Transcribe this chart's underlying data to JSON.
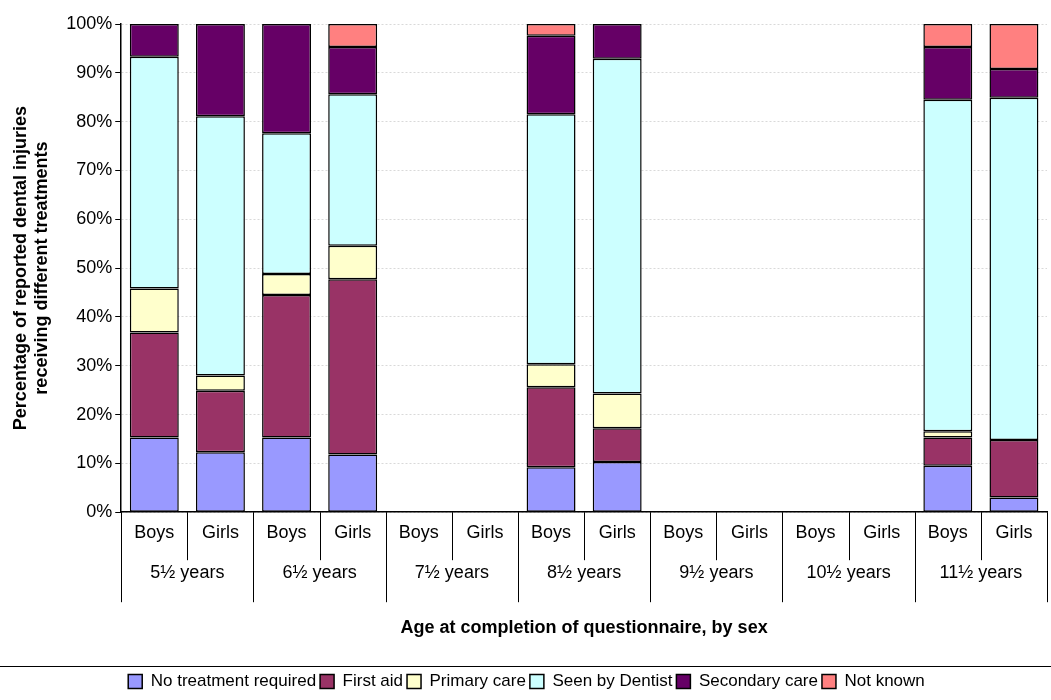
{
  "chart_data": {
    "type": "bar",
    "stacked": true,
    "xlabel": "Age at completion of questionnaire, by sex",
    "ylabel": "Percentage of reported dental injuries receiving different treatments",
    "categories": [
      "Boys",
      "Girls",
      "Boys",
      "Girls",
      "Boys",
      "Girls",
      "Boys",
      "Girls",
      "Boys",
      "Girls",
      "Boys",
      "Girls",
      "Boys",
      "Girls"
    ],
    "annotations": [
      "5½ years",
      "6½ years",
      "7½ years",
      "8½ years",
      "9½ years",
      "10½ years",
      "11½ years"
    ],
    "series": [
      {
        "name": "No treatment required",
        "color": "#9999ff",
        "values": [
          15.3,
          12.3,
          15.3,
          11.8,
          null,
          null,
          9.2,
          10.3,
          null,
          null,
          null,
          null,
          9.5,
          3.0
        ]
      },
      {
        "name": "First aid",
        "color": "#993366",
        "values": [
          21.5,
          12.6,
          29.2,
          35.9,
          null,
          null,
          16.4,
          6.9,
          null,
          null,
          null,
          null,
          5.8,
          11.8
        ]
      },
      {
        "name": "Primary care",
        "color": "#ffffcc",
        "values": [
          9.0,
          3.1,
          4.3,
          6.9,
          null,
          null,
          4.7,
          7.1,
          null,
          null,
          null,
          null,
          1.3,
          0
        ]
      },
      {
        "name": "Seen by Dentist",
        "color": "#ccffff",
        "values": [
          47.5,
          53.1,
          28.8,
          31.0,
          null,
          null,
          51.2,
          68.6,
          null,
          null,
          null,
          null,
          67.9,
          70.1
        ]
      },
      {
        "name": "Secondary care",
        "color": "#660066",
        "values": [
          6.7,
          18.9,
          22.4,
          9.7,
          null,
          null,
          16.1,
          7.1,
          null,
          null,
          null,
          null,
          10.8,
          5.9
        ]
      },
      {
        "name": "Not known",
        "color": "#ff8080",
        "values": [
          0,
          0,
          0,
          4.7,
          null,
          null,
          2.4,
          0,
          null,
          null,
          null,
          null,
          4.7,
          9.2
        ]
      }
    ],
    "ylim": [
      0,
      100
    ],
    "yticks": [
      {
        "value": 0,
        "label": "0%"
      },
      {
        "value": 10,
        "label": "10%"
      },
      {
        "value": 20,
        "label": "20%"
      },
      {
        "value": 30,
        "label": "30%"
      },
      {
        "value": 40,
        "label": "40%"
      },
      {
        "value": 50,
        "label": "50%"
      },
      {
        "value": 60,
        "label": "60%"
      },
      {
        "value": 70,
        "label": "70%"
      },
      {
        "value": 80,
        "label": "80%"
      },
      {
        "value": 90,
        "label": "90%"
      },
      {
        "value": 100,
        "label": "100%"
      }
    ],
    "grid": "y",
    "legend": "bottom"
  }
}
